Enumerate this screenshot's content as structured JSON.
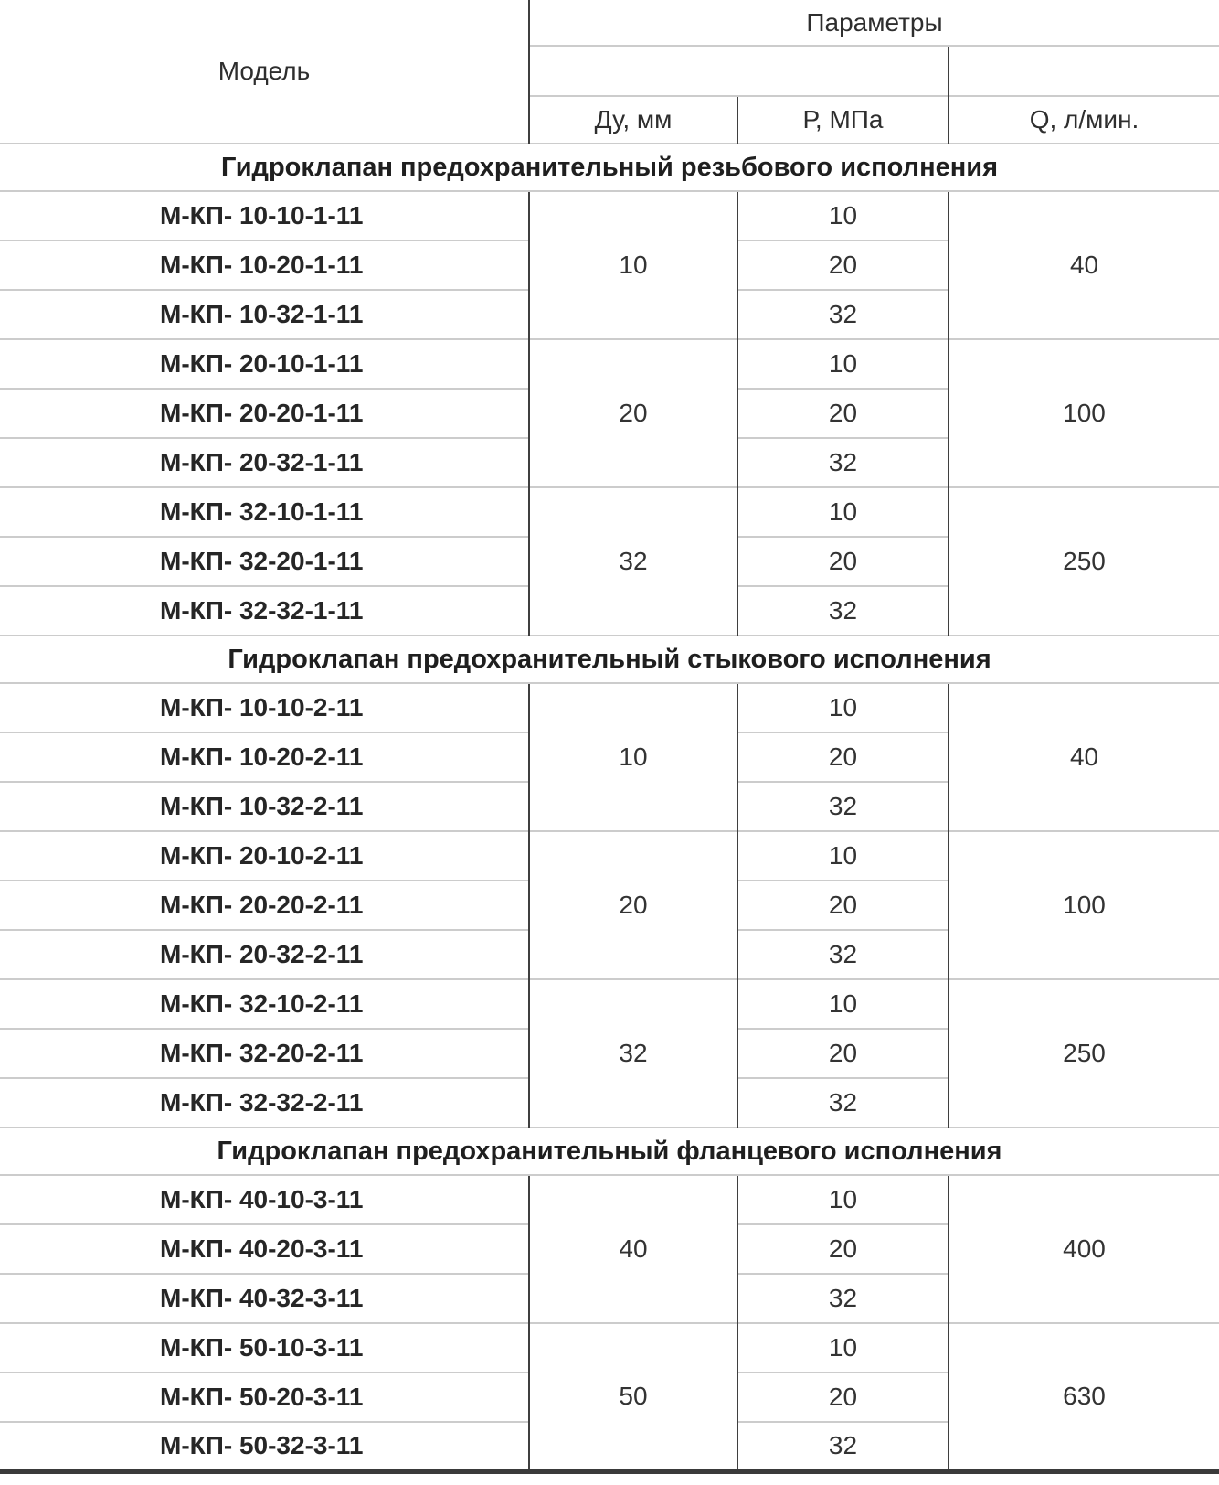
{
  "header": {
    "model_label": "Модель",
    "parameters_label": "Параметры",
    "col_du": "Ду, мм",
    "col_p": "Р, МПа",
    "col_q": "Q, л/мин."
  },
  "colors": {
    "text": "#2e2e2e",
    "dark_line": "#3f3f3f",
    "light_line": "#cccccc",
    "bottom_border": "#3a3a3a",
    "background": "#ffffff"
  },
  "sections": [
    {
      "title": "Гидроклапан предохранительный резьбового исполнения",
      "rows": [
        {
          "model": "М-КП- 10-10-1-11",
          "du": "10",
          "p": "10",
          "q": "40"
        },
        {
          "model": "М-КП- 10-20-1-11",
          "p": "20"
        },
        {
          "model": "М-КП- 10-32-1-11",
          "p": "32"
        },
        {
          "model": "М-КП- 20-10-1-11",
          "du": "20",
          "p": "10",
          "q": "100"
        },
        {
          "model": "М-КП- 20-20-1-11",
          "p": "20"
        },
        {
          "model": "М-КП- 20-32-1-11",
          "p": "32"
        },
        {
          "model": "М-КП- 32-10-1-11",
          "du": "32",
          "p": "10",
          "q": "250"
        },
        {
          "model": "М-КП- 32-20-1-11",
          "p": "20"
        },
        {
          "model": "М-КП- 32-32-1-11",
          "p": "32"
        }
      ]
    },
    {
      "title": "Гидроклапан предохранительный стыкового исполнения",
      "rows": [
        {
          "model": "М-КП- 10-10-2-11",
          "du": "10",
          "p": "10",
          "q": "40"
        },
        {
          "model": "М-КП- 10-20-2-11",
          "p": "20"
        },
        {
          "model": "М-КП- 10-32-2-11",
          "p": "32"
        },
        {
          "model": "М-КП- 20-10-2-11",
          "du": "20",
          "p": "10",
          "q": "100"
        },
        {
          "model": "М-КП- 20-20-2-11",
          "p": "20"
        },
        {
          "model": "М-КП- 20-32-2-11",
          "p": "32"
        },
        {
          "model": "М-КП- 32-10-2-11",
          "du": "32",
          "p": "10",
          "q": "250"
        },
        {
          "model": "М-КП- 32-20-2-11",
          "p": "20"
        },
        {
          "model": "М-КП- 32-32-2-11",
          "p": "32"
        }
      ]
    },
    {
      "title": "Гидроклапан предохранительный фланцевого исполнения",
      "rows": [
        {
          "model": "М-КП- 40-10-3-11",
          "du": "40",
          "p": "10",
          "q": "400"
        },
        {
          "model": "М-КП- 40-20-3-11",
          "p": "20"
        },
        {
          "model": "М-КП- 40-32-3-11",
          "p": "32"
        },
        {
          "model": "М-КП- 50-10-3-11",
          "du": "50",
          "p": "10",
          "q": "630"
        },
        {
          "model": "М-КП- 50-20-3-11",
          "p": "20"
        },
        {
          "model": "М-КП- 50-32-3-11",
          "p": "32"
        }
      ]
    }
  ]
}
